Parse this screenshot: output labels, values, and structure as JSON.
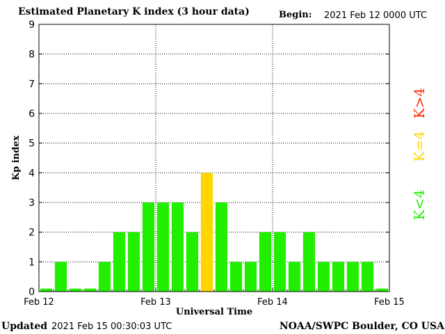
{
  "header": {
    "title": "Estimated Planetary K index (3 hour data)",
    "begin_label": "Begin:",
    "begin_value": "2021 Feb 12 0000 UTC"
  },
  "footer": {
    "updated_label": "Updated",
    "updated_value": "2021 Feb 15 00:30:03 UTC",
    "credit": "NOAA/SWPC Boulder, CO USA"
  },
  "legend": [
    {
      "label": "K<4",
      "color": "#22ee00"
    },
    {
      "label": "K=4",
      "color": "#ffd700"
    },
    {
      "label": "K>4",
      "color": "#ff2a00"
    }
  ],
  "chart_data": {
    "type": "bar",
    "title": "Estimated Planetary K index (3 hour data)",
    "xlabel": "Universal Time",
    "ylabel": "Kp index",
    "ylim": [
      0,
      9
    ],
    "yticks": [
      0,
      1,
      2,
      3,
      4,
      5,
      6,
      7,
      8,
      9
    ],
    "xticks": [
      "Feb 12",
      "Feb 13",
      "Feb 14",
      "Feb 15"
    ],
    "grid": true,
    "x": [
      "Feb 12 00",
      "Feb 12 03",
      "Feb 12 06",
      "Feb 12 09",
      "Feb 12 12",
      "Feb 12 15",
      "Feb 12 18",
      "Feb 12 21",
      "Feb 13 00",
      "Feb 13 03",
      "Feb 13 06",
      "Feb 13 09",
      "Feb 13 12",
      "Feb 13 15",
      "Feb 13 18",
      "Feb 13 21",
      "Feb 14 00",
      "Feb 14 03",
      "Feb 14 06",
      "Feb 14 09",
      "Feb 14 12",
      "Feb 14 15",
      "Feb 14 18",
      "Feb 14 21"
    ],
    "values": [
      0,
      1,
      0,
      0,
      1,
      2,
      2,
      3,
      3,
      3,
      2,
      4,
      3,
      1,
      1,
      2,
      2,
      1,
      2,
      1,
      1,
      1,
      1,
      0
    ],
    "colors": {
      "below4": "#22ee00",
      "equal4": "#ffd700",
      "above4": "#ff2a00"
    }
  }
}
